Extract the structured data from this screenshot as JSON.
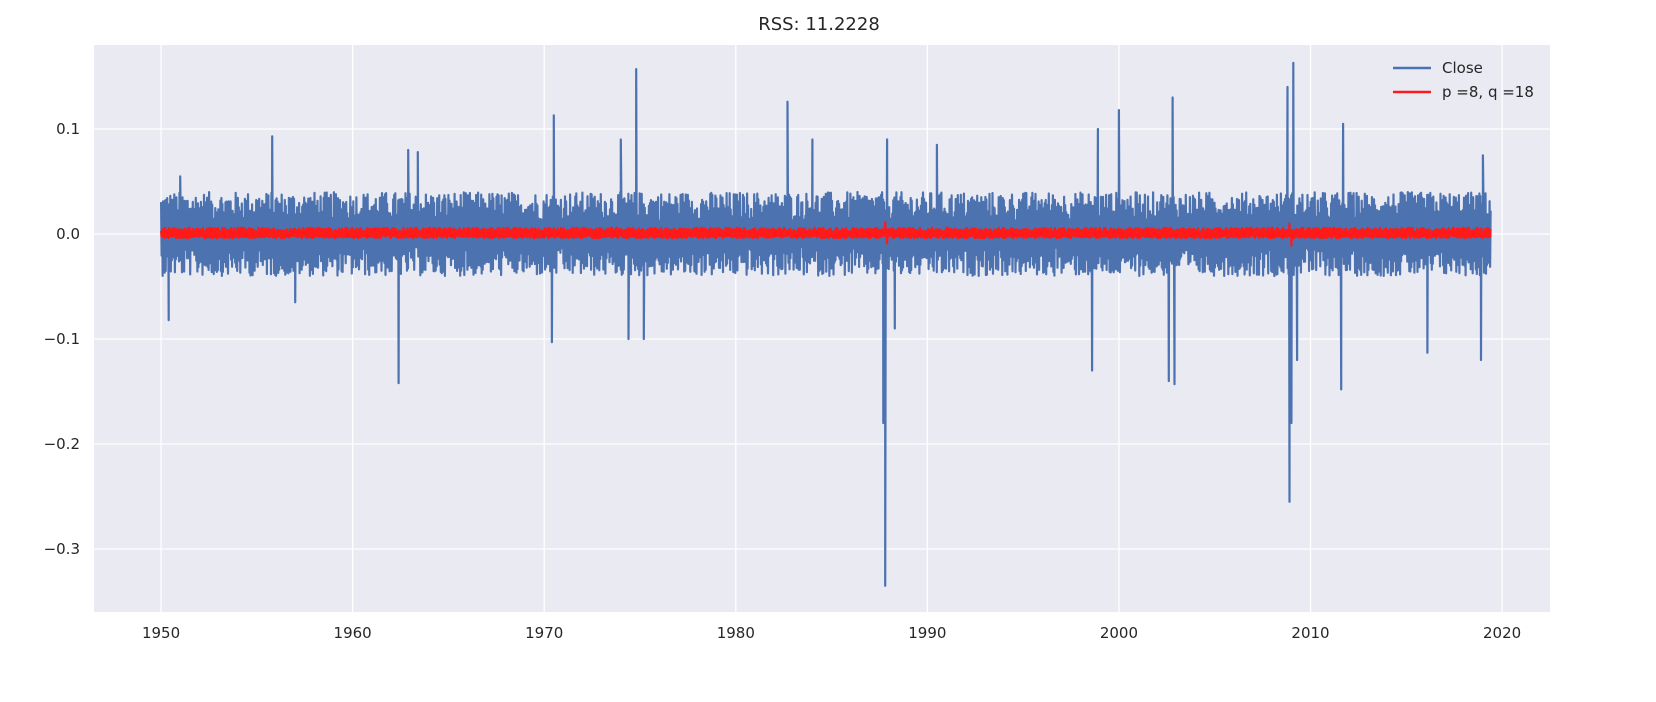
{
  "chart_data": {
    "type": "line",
    "title": "RSS: 11.2228",
    "xlabel": "",
    "ylabel": "",
    "xlim": [
      1946.5,
      2022.5
    ],
    "ylim": [
      -0.36,
      0.18
    ],
    "grid": true,
    "legend_position": "top-right",
    "x_ticks": [
      1950,
      1960,
      1970,
      1980,
      1990,
      2000,
      2010,
      2020
    ],
    "x_tick_labels": [
      "1950",
      "1960",
      "1970",
      "1980",
      "1990",
      "2000",
      "2010",
      "2020"
    ],
    "y_ticks": [
      0.1,
      0.0,
      -0.1,
      -0.2,
      -0.3
    ],
    "y_tick_labels": [
      "0.1",
      "0.0",
      "−0.1",
      "−0.2",
      "−0.3"
    ],
    "x_range": [
      1950.0,
      2019.4
    ],
    "series": [
      {
        "name": "Close",
        "color": "#4c72b0",
        "baseline_band": [
          -0.04,
          0.04
        ],
        "spikes": [
          [
            1950.4,
            -0.082
          ],
          [
            1951.0,
            0.055
          ],
          [
            1955.8,
            0.093
          ],
          [
            1957.0,
            -0.065
          ],
          [
            1962.4,
            -0.142
          ],
          [
            1962.9,
            0.08
          ],
          [
            1963.4,
            0.078
          ],
          [
            1970.4,
            -0.103
          ],
          [
            1970.5,
            0.113
          ],
          [
            1974.0,
            0.09
          ],
          [
            1974.4,
            -0.1
          ],
          [
            1974.8,
            0.157
          ],
          [
            1975.2,
            -0.1
          ],
          [
            1982.7,
            0.126
          ],
          [
            1984.0,
            0.09
          ],
          [
            1987.7,
            -0.18
          ],
          [
            1987.8,
            -0.335
          ],
          [
            1987.9,
            0.09
          ],
          [
            1988.3,
            -0.09
          ],
          [
            1990.5,
            0.085
          ],
          [
            1998.6,
            -0.13
          ],
          [
            1998.9,
            0.1
          ],
          [
            2000.0,
            0.118
          ],
          [
            2002.6,
            -0.14
          ],
          [
            2002.8,
            0.13
          ],
          [
            2002.9,
            -0.143
          ],
          [
            2008.8,
            0.14
          ],
          [
            2008.9,
            -0.255
          ],
          [
            2009.0,
            -0.18
          ],
          [
            2009.1,
            0.163
          ],
          [
            2009.3,
            -0.12
          ],
          [
            2011.6,
            -0.148
          ],
          [
            2011.7,
            0.105
          ],
          [
            2016.1,
            -0.113
          ],
          [
            2018.9,
            -0.12
          ],
          [
            2019.0,
            0.075
          ]
        ]
      },
      {
        "name": "p =8, q =18",
        "color": "#ff1a1a",
        "baseline_band": [
          -0.004,
          0.006
        ],
        "spikes": [
          [
            1987.8,
            0.011
          ],
          [
            1987.9,
            -0.009
          ],
          [
            2008.9,
            0.01
          ],
          [
            2009.0,
            -0.011
          ]
        ]
      }
    ]
  }
}
